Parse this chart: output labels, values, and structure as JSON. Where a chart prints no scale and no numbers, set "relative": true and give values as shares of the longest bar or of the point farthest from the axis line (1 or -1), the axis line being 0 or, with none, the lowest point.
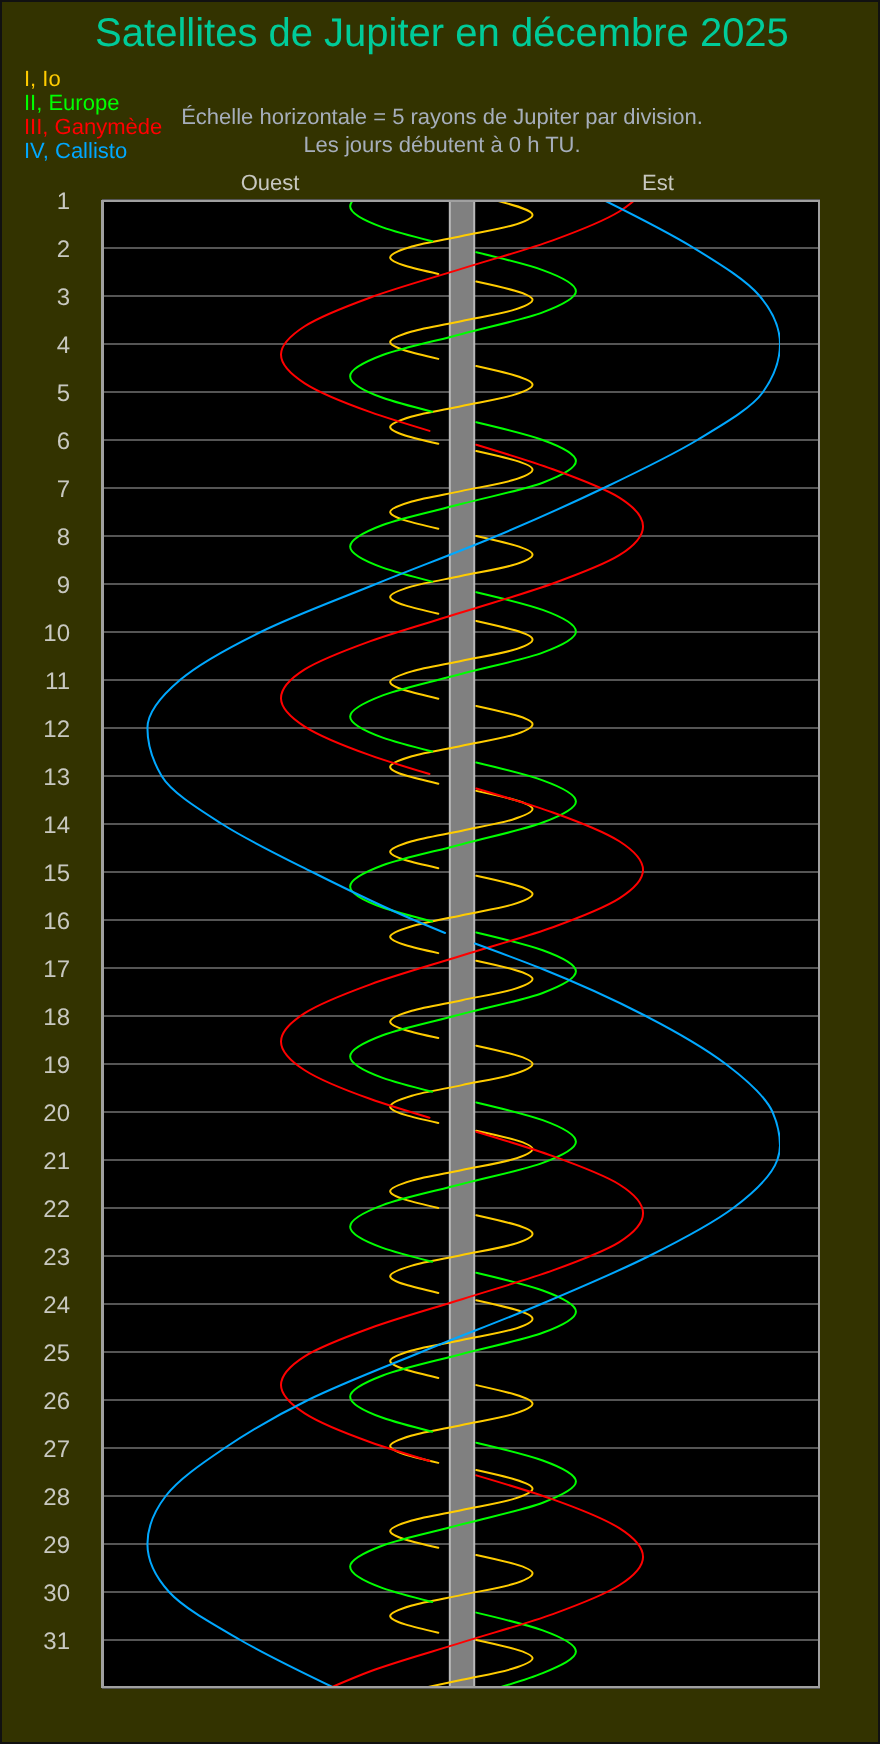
{
  "chart_data": {
    "type": "line",
    "orientation": "horizontal",
    "relative": true,
    "title": "Satellites de Jupiter en décembre 2025",
    "annotations": [
      "Échelle horizontale = 5 rayons de Jupiter par division.",
      "Les jours débutent à 0 h TU.",
      "Ouest",
      "Est"
    ],
    "series": [
      {
        "name": "I, Io",
        "color": "#ffcc00",
        "values": [
          0.579,
          0.635,
          0.605,
          0.531,
          0.457,
          0.425,
          0.496,
          null,
          0.552,
          0.635,
          0.605,
          0.531,
          0.457,
          0.425,
          0.496,
          null,
          0.552,
          0.635,
          0.605,
          0.531,
          0.457,
          0.425,
          0.496,
          null,
          0.552,
          0.635,
          0.605,
          0.531,
          0.457,
          0.425,
          0.496,
          null,
          0.552,
          0.635,
          0.605,
          0.531,
          0.457,
          0.425,
          0.496,
          null,
          0.552,
          0.635,
          0.605,
          0.531,
          0.457,
          0.425,
          0.496,
          null,
          0.552,
          0.635,
          0.605,
          0.531,
          0.457,
          0.425,
          0.496,
          null,
          0.552,
          0.635,
          0.605,
          0.531,
          0.457,
          0.425,
          0.496,
          null,
          0.552,
          0.635,
          0.605,
          0.531,
          0.457,
          0.425,
          0.496,
          null,
          0.552,
          0.635,
          0.605,
          0.531,
          0.457,
          0.425,
          0.496,
          null,
          0.552,
          0.635,
          0.605,
          0.531,
          0.457,
          0.425,
          0.496,
          null,
          0.552,
          0.635,
          0.605,
          0.531,
          0.457,
          0.425,
          0.496,
          null,
          0.552,
          0.635,
          0.605,
          0.531,
          0.457,
          0.425,
          0.496,
          null,
          0.552,
          0.635,
          0.605,
          0.531,
          0.457,
          0.425,
          0.496,
          null,
          0.552,
          0.635,
          0.605,
          0.531,
          0.457,
          0.425,
          0.496,
          null,
          0.552,
          0.635,
          0.605,
          0.531,
          0.457,
          0.425,
          0.496,
          null,
          0.552,
          0.635,
          0.605,
          0.531,
          0.457,
          0.425,
          0.496,
          null,
          0.552,
          0.635,
          0.605,
          0.531,
          0.474
        ],
        "x": [
          1,
          1.31,
          1.53,
          1.75,
          1.97,
          2.2,
          2.54,
          null,
          2.7,
          3.08,
          3.3,
          3.52,
          3.74,
          3.96,
          4.31,
          null,
          4.46,
          4.85,
          5.07,
          5.29,
          5.51,
          5.73,
          6.08,
          null,
          6.23,
          6.62,
          6.84,
          7.06,
          7.28,
          7.5,
          7.85,
          null,
          8,
          8.39,
          8.61,
          8.83,
          9.05,
          9.27,
          9.62,
          null,
          9.77,
          10.16,
          10.38,
          10.6,
          10.82,
          11.04,
          11.39,
          null,
          11.54,
          11.92,
          12.15,
          12.37,
          12.59,
          12.81,
          13.16,
          null,
          13.31,
          13.69,
          13.91,
          14.14,
          14.36,
          14.58,
          14.92,
          null,
          15.08,
          15.46,
          15.68,
          15.9,
          16.13,
          16.35,
          16.69,
          null,
          16.85,
          17.23,
          17.45,
          17.67,
          17.89,
          18.12,
          18.46,
          null,
          18.62,
          19,
          19.22,
          19.44,
          19.66,
          19.89,
          20.23,
          null,
          20.39,
          20.77,
          20.99,
          21.21,
          21.43,
          21.65,
          22,
          null,
          22.15,
          22.54,
          22.76,
          22.98,
          23.2,
          23.42,
          23.77,
          null,
          23.92,
          24.31,
          24.53,
          24.75,
          24.97,
          25.19,
          25.54,
          null,
          25.69,
          26.08,
          26.3,
          26.52,
          26.74,
          26.96,
          27.31,
          null,
          27.46,
          27.85,
          28.07,
          28.29,
          28.51,
          28.73,
          29.08,
          null,
          29.23,
          29.61,
          29.84,
          30.06,
          30.28,
          30.5,
          30.85,
          null,
          31,
          31.38,
          31.6,
          31.83,
          32
        ]
      },
      {
        "name": "II, Europe",
        "color": "#00ff00",
        "values": [
          0.37,
          0.366,
          0.414,
          0.487,
          null,
          0.552,
          0.65,
          0.699,
          0.65,
          0.531,
          0.414,
          0.366,
          0.414,
          0.487,
          null,
          0.552,
          0.65,
          0.699,
          0.65,
          0.531,
          0.414,
          0.366,
          0.414,
          0.487,
          null,
          0.552,
          0.65,
          0.699,
          0.65,
          0.531,
          0.414,
          0.366,
          0.414,
          0.487,
          null,
          0.552,
          0.65,
          0.699,
          0.65,
          0.531,
          0.414,
          0.366,
          0.414,
          0.487,
          null,
          0.552,
          0.65,
          0.699,
          0.65,
          0.531,
          0.414,
          0.366,
          0.414,
          0.487,
          null,
          0.552,
          0.65,
          0.699,
          0.65,
          0.531,
          0.414,
          0.366,
          0.414,
          0.487,
          null,
          0.552,
          0.65,
          0.699,
          0.65,
          0.531,
          0.414,
          0.366,
          0.414,
          0.487,
          null,
          0.552,
          0.65,
          0.699,
          0.65,
          0.531,
          0.414,
          0.366,
          0.414,
          0.487,
          null,
          0.552,
          0.65,
          0.699,
          0.65,
          0.584
        ],
        "x": [
          1,
          1.13,
          1.57,
          1.86,
          null,
          2.09,
          2.46,
          2.9,
          3.34,
          3.79,
          4.23,
          4.67,
          5.12,
          5.41,
          null,
          5.63,
          6,
          6.44,
          6.89,
          7.33,
          7.77,
          8.22,
          8.66,
          8.95,
          null,
          9.17,
          9.54,
          9.99,
          10.43,
          10.87,
          11.32,
          11.76,
          12.2,
          12.49,
          null,
          12.72,
          13.09,
          13.53,
          13.97,
          14.42,
          14.86,
          15.3,
          15.74,
          16.03,
          null,
          16.26,
          16.63,
          17.07,
          17.52,
          17.96,
          18.4,
          18.84,
          19.29,
          19.58,
          null,
          19.8,
          20.17,
          20.62,
          21.06,
          21.5,
          21.94,
          22.39,
          22.83,
          23.12,
          null,
          23.35,
          23.72,
          24.16,
          24.6,
          25.04,
          25.49,
          25.93,
          26.37,
          26.66,
          null,
          26.89,
          27.26,
          27.7,
          28.14,
          28.59,
          29.03,
          29.47,
          29.92,
          30.21,
          null,
          30.43,
          30.8,
          31.24,
          31.69,
          32
        ]
      },
      {
        "name": "III, Ganymède",
        "color": "#ff0000",
        "values": [
          0.786,
          0.763,
          0.665,
          0.531,
          0.396,
          0.299,
          0.264,
          0.299,
          0.396,
          0.483,
          null,
          0.552,
          0.665,
          0.763,
          0.798,
          0.763,
          0.665,
          0.531,
          0.396,
          0.299,
          0.264,
          0.299,
          0.396,
          0.483,
          null,
          0.552,
          0.665,
          0.763,
          0.798,
          0.763,
          0.665,
          0.531,
          0.396,
          0.299,
          0.264,
          0.299,
          0.396,
          0.483,
          null,
          0.552,
          0.665,
          0.763,
          0.798,
          0.763,
          0.665,
          0.531,
          0.396,
          0.299,
          0.264,
          0.299,
          0.396,
          0.483,
          null,
          0.552,
          0.665,
          0.763,
          0.798,
          0.763,
          0.665,
          0.531,
          0.396,
          0.336
        ],
        "x": [
          1,
          1.24,
          1.84,
          2.43,
          3.03,
          3.63,
          4.22,
          4.82,
          5.42,
          5.81,
          null,
          6.1,
          6.61,
          7.2,
          7.8,
          8.4,
          8.99,
          9.59,
          10.19,
          10.78,
          11.38,
          11.97,
          12.57,
          12.96,
          null,
          13.26,
          13.76,
          14.36,
          14.96,
          15.55,
          16.15,
          16.74,
          17.34,
          17.94,
          18.53,
          19.13,
          19.73,
          20.12,
          null,
          20.41,
          20.92,
          21.51,
          22.11,
          22.71,
          23.3,
          23.9,
          24.5,
          25.09,
          25.69,
          26.28,
          26.88,
          27.27,
          null,
          27.57,
          28.07,
          28.67,
          29.27,
          29.86,
          30.46,
          31.05,
          31.65,
          32
        ]
      },
      {
        "name": "IV, Callisto",
        "color": "#00a8ff",
        "values": [
          0.74,
          0.873,
          0.97,
          1,
          0.975,
          0.878,
          0.74,
          0.582,
          0.404,
          0.234,
          0.115,
          0.067,
          0.088,
          0.177,
          0.31,
          0.46,
          0.506,
          null,
          0.55,
          0.646,
          0.802,
          0.92,
          0.989,
          1,
          0.996,
          0.931,
          0.807,
          0.648,
          0.471,
          0.304,
          0.181,
          0.094,
          0.067,
          0.099,
          0.204,
          0.343
        ],
        "x": [
          1,
          2,
          3,
          4,
          5,
          6,
          7,
          8,
          9,
          10,
          11,
          12,
          13,
          14,
          15,
          16,
          16.27,
          null,
          16.49,
          17,
          18,
          19,
          20,
          20.7,
          21,
          22,
          23,
          24,
          25,
          26,
          27,
          28,
          29,
          30,
          31,
          32
        ]
      }
    ],
    "ylim": [
      32,
      1
    ],
    "yticks": [
      1,
      2,
      3,
      4,
      5,
      6,
      7,
      8,
      9,
      10,
      11,
      12,
      13,
      14,
      15,
      16,
      17,
      18,
      19,
      20,
      21,
      22,
      23,
      24,
      25,
      26,
      27,
      28,
      29,
      30,
      31
    ],
    "grid": "y",
    "marker": "none",
    "line_style": "solid",
    "bands": [
      {
        "axis": "x",
        "from": 0.513,
        "to": 0.549,
        "color": "#808080"
      }
    ]
  }
}
